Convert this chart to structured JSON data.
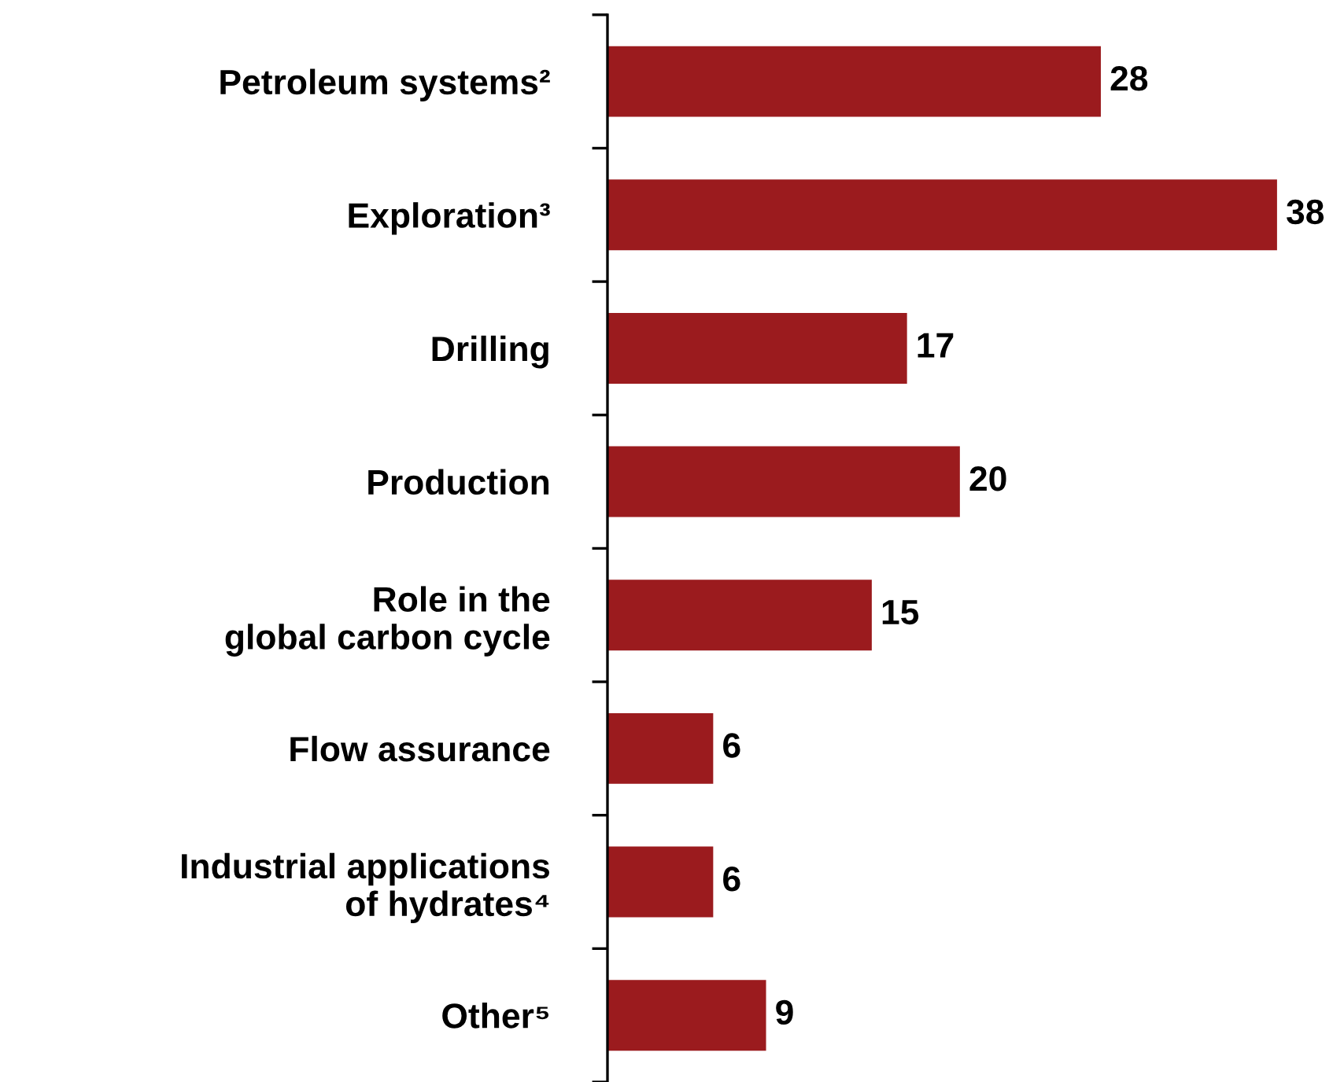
{
  "chart_data": {
    "type": "bar",
    "orientation": "horizontal",
    "categories": [
      "Petroleum systems²",
      "Exploration³",
      "Drilling",
      "Production",
      "Role in the\nglobal carbon cycle",
      "Flow assurance",
      "Industrial applications\nof hydrates⁴",
      "Other⁵"
    ],
    "values": [
      28,
      38,
      17,
      20,
      15,
      6,
      6,
      9
    ],
    "color": "#9b1b1e",
    "data_labels": true,
    "grid": false,
    "legend": false,
    "tick_labels": "y"
  }
}
